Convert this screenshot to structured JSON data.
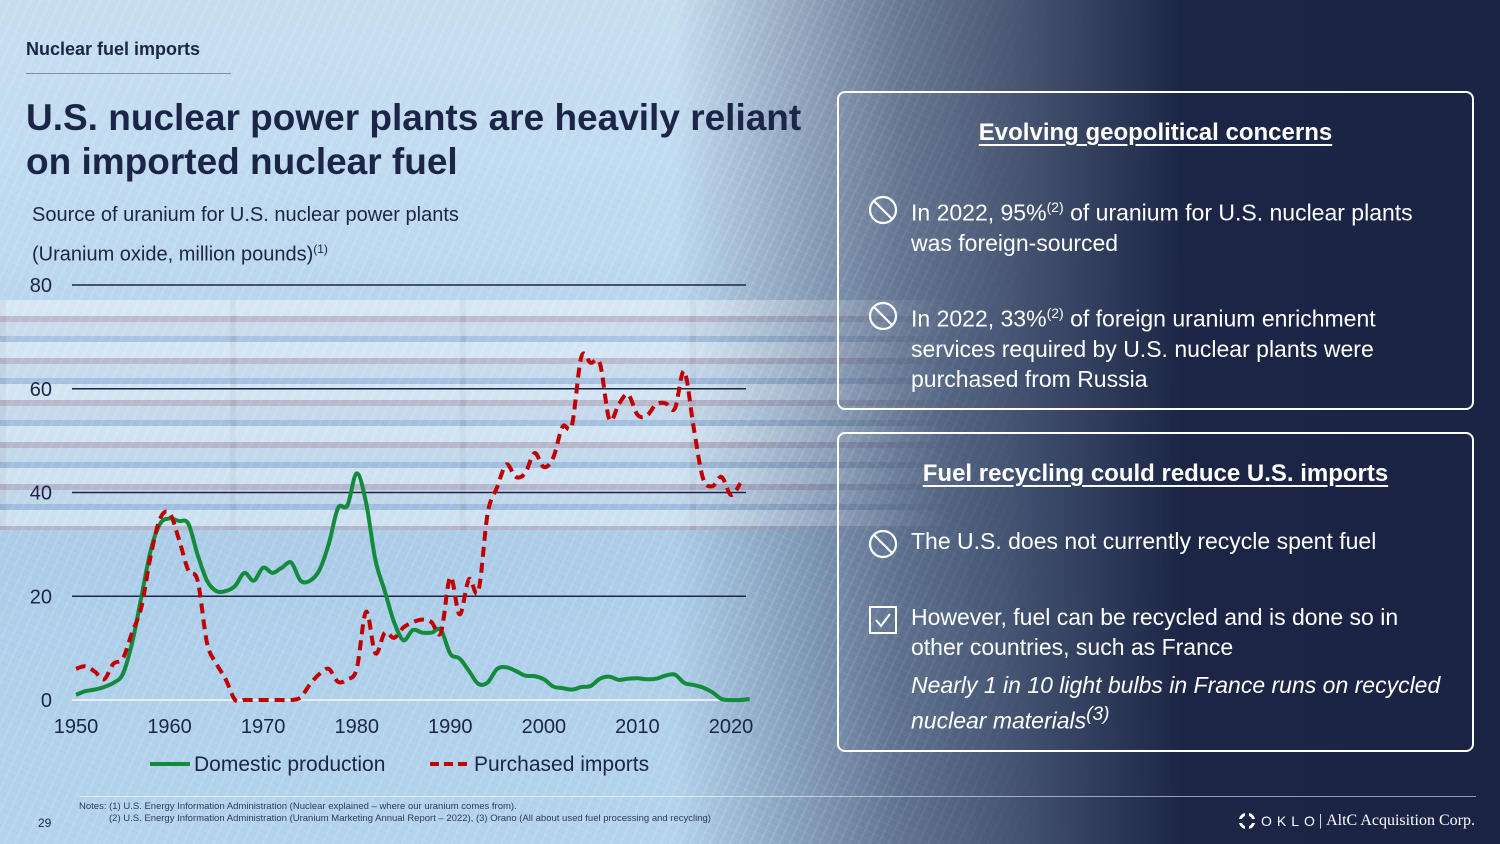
{
  "header": {
    "section_label": "Nuclear fuel imports",
    "title": "U.S. nuclear power plants are heavily reliant on imported nuclear fuel",
    "subtitle_line1": "Source of uranium for U.S. nuclear power plants",
    "subtitle_line2": "(Uranium oxide, million pounds)",
    "subtitle_footnote": "(1)"
  },
  "chart_data": {
    "type": "line",
    "title": "Source of uranium for U.S. nuclear power plants",
    "ylabel": "Uranium oxide, million pounds",
    "xlabel": "",
    "xlim": [
      1950,
      2022
    ],
    "ylim": [
      0,
      80
    ],
    "yticks": [
      0,
      20,
      40,
      60,
      80
    ],
    "xticks": [
      1950,
      1960,
      1970,
      1980,
      1990,
      2000,
      2010,
      2020
    ],
    "grid": "horizontal",
    "legend_position": "bottom",
    "colors": {
      "domestic": "#138a3c",
      "imports": "#c00000",
      "grid": "#1c2547"
    },
    "x": [
      1950,
      1951,
      1952,
      1953,
      1954,
      1955,
      1956,
      1957,
      1958,
      1959,
      1960,
      1961,
      1962,
      1963,
      1964,
      1965,
      1966,
      1967,
      1968,
      1969,
      1970,
      1971,
      1972,
      1973,
      1974,
      1975,
      1976,
      1977,
      1978,
      1979,
      1980,
      1981,
      1982,
      1983,
      1984,
      1985,
      1986,
      1987,
      1988,
      1989,
      1990,
      1991,
      1992,
      1993,
      1994,
      1995,
      1996,
      1997,
      1998,
      1999,
      2000,
      2001,
      2002,
      2003,
      2004,
      2005,
      2006,
      2007,
      2008,
      2009,
      2010,
      2011,
      2012,
      2013,
      2014,
      2015,
      2016,
      2017,
      2018,
      2019,
      2020,
      2021,
      2022
    ],
    "series": [
      {
        "name": "Domestic production",
        "style": "solid",
        "values": [
          1.0,
          1.7,
          2.0,
          2.5,
          3.3,
          5.0,
          11.0,
          20.0,
          29.0,
          34.0,
          35.0,
          34.5,
          34.0,
          28.0,
          23.0,
          21.0,
          21.0,
          22.0,
          24.5,
          23.0,
          25.5,
          24.5,
          25.5,
          26.5,
          23.0,
          23.0,
          25.0,
          30.0,
          37.0,
          37.5,
          43.7,
          38.0,
          27.0,
          21.0,
          15.0,
          11.5,
          13.5,
          13.0,
          13.0,
          13.5,
          8.9,
          8.0,
          5.6,
          3.1,
          3.4,
          6.0,
          6.3,
          5.6,
          4.7,
          4.6,
          4.0,
          2.6,
          2.3,
          2.0,
          2.5,
          2.7,
          4.1,
          4.5,
          3.9,
          4.1,
          4.2,
          4.0,
          4.1,
          4.7,
          4.9,
          3.3,
          2.9,
          2.4,
          1.5,
          0.2,
          0.0,
          0.0,
          0.2
        ]
      },
      {
        "name": "Purchased imports",
        "style": "dashed",
        "values": [
          6.0,
          6.5,
          5.5,
          4.0,
          7.0,
          8.0,
          13.0,
          18.0,
          28.0,
          35.0,
          36.0,
          31.0,
          25.0,
          23.0,
          11.0,
          7.0,
          4.0,
          0.0,
          0.0,
          0.0,
          0.0,
          0.0,
          0.0,
          0.0,
          0.5,
          3.0,
          5.0,
          6.0,
          3.5,
          4.0,
          6.0,
          17.0,
          9.0,
          13.0,
          12.0,
          14.0,
          15.0,
          15.5,
          15.0,
          13.0,
          23.7,
          16.5,
          23.3,
          21.0,
          36.0,
          41.0,
          45.4,
          43.0,
          43.7,
          47.6,
          44.9,
          46.7,
          52.7,
          53.0,
          66.1,
          65.0,
          64.8,
          54.1,
          57.0,
          58.9,
          55.0,
          54.8,
          57.0,
          57.2,
          56.2,
          63.4,
          52.6,
          42.8,
          41.2,
          43.0,
          39.5,
          41.8,
          null
        ]
      }
    ]
  },
  "cards": [
    {
      "title": "Evolving geopolitical concerns",
      "items": [
        {
          "icon": "prohibited-icon",
          "pre": "In 2022, 95%",
          "sup": "(2)",
          "post": " of uranium for U.S. nuclear plants was foreign-sourced"
        },
        {
          "icon": "prohibited-icon",
          "pre": "In 2022, 33%",
          "sup": "(2)",
          "post": " of foreign uranium enrichment services required by U.S. nuclear plants were purchased from Russia"
        }
      ]
    },
    {
      "title": "Fuel recycling could reduce U.S. imports",
      "items": [
        {
          "icon": "prohibited-icon",
          "text": "The U.S. does not currently recycle spent fuel"
        },
        {
          "icon": "checkbox-checked-icon",
          "text": "However, fuel can be recycled and is done so in other countries, such as France",
          "note": "Nearly 1 in 10 light bulbs in France runs on recycled nuclear materials",
          "note_sup": "(3)"
        }
      ]
    }
  ],
  "footer": {
    "page_number": "29",
    "notes_line1": "Notes: (1) U.S. Energy Information Administration (Nuclear explained – where our uranium comes from).",
    "notes_line2": "(2) U.S. Energy Information Administration (Uranium Marketing Annual Report – 2022), (3) Orano (All about used fuel processing and recycling)",
    "brand_oklo": "OKLO",
    "brand_separator": "|",
    "brand_partner": "AltC Acquisition Corp."
  }
}
